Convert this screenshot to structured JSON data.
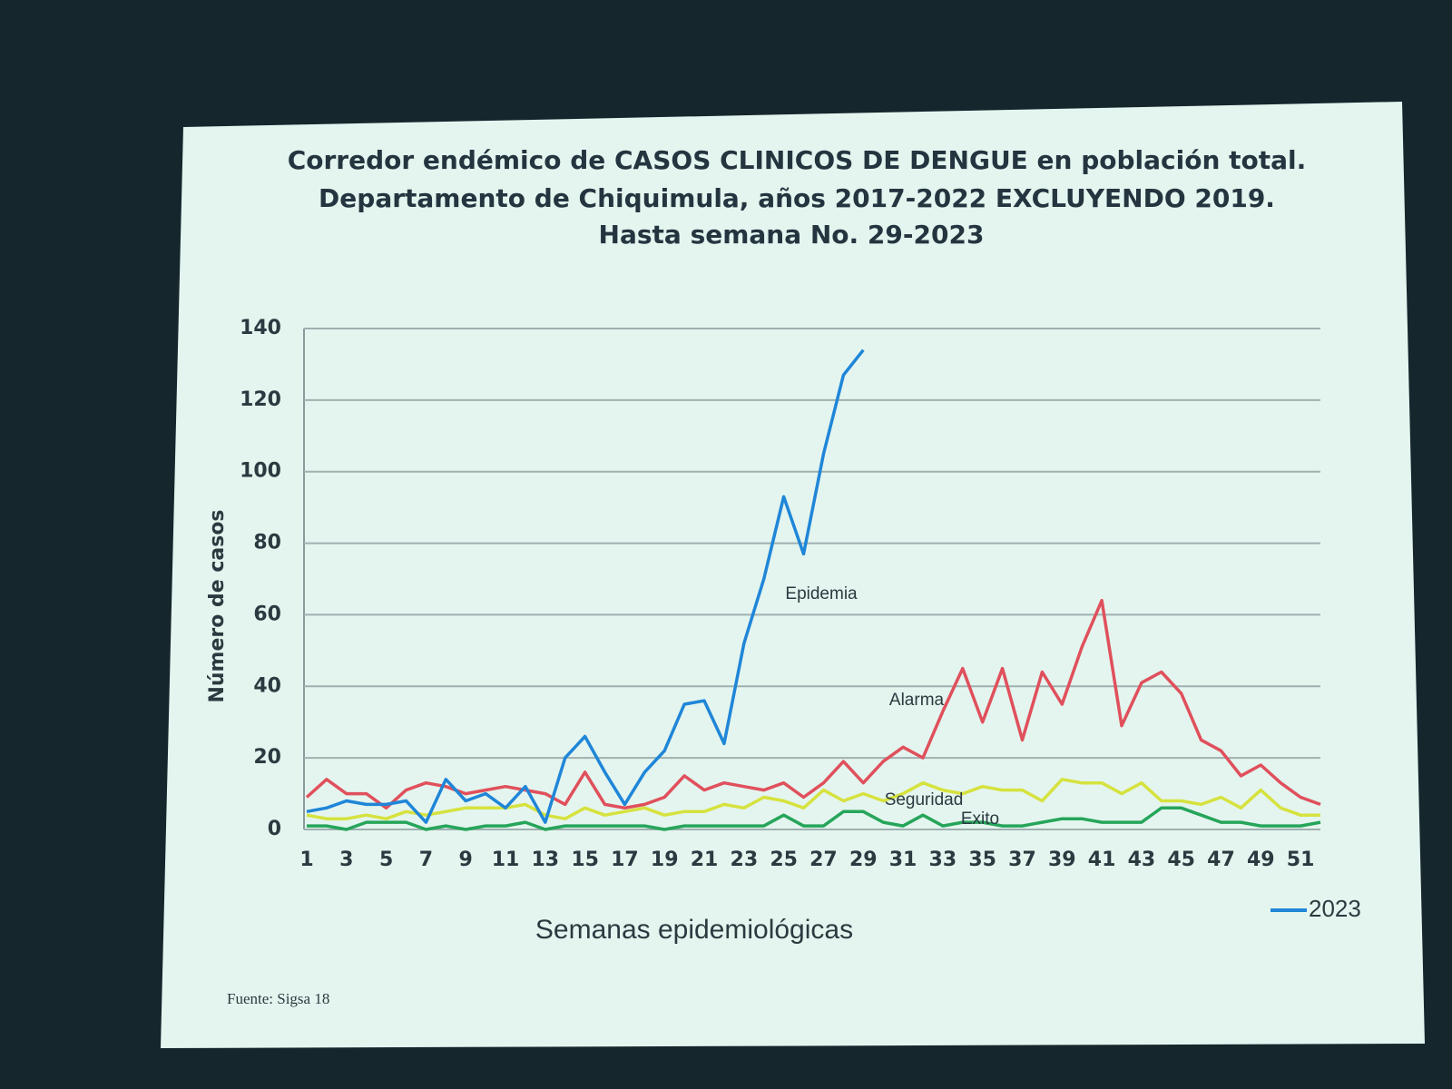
{
  "chart_data": {
    "type": "line",
    "title": [
      "Corredor endémico de CASOS CLINICOS DE DENGUE en población total.",
      "Departamento de Chiquimula, años 2017-2022 EXCLUYENDO 2019.",
      "Hasta semana No. 29-2023"
    ],
    "x_label": "Semanas epidemiológicas",
    "y_label": "Número de casos",
    "source": "Fuente: Sigsa 18",
    "categories": [
      1,
      null,
      3,
      null,
      5,
      null,
      7,
      null,
      9,
      null,
      11,
      null,
      13,
      null,
      15,
      null,
      17,
      null,
      19,
      null,
      21,
      null,
      23,
      null,
      25,
      null,
      27,
      null,
      29,
      null,
      31,
      null,
      33,
      null,
      35,
      null,
      37,
      null,
      39,
      null,
      41,
      null,
      43,
      null,
      45,
      null,
      47,
      null,
      49,
      null,
      51,
      null
    ],
    "ylim": [
      0,
      140
    ],
    "yticks": [
      0,
      20,
      40,
      60,
      80,
      100,
      120,
      140
    ],
    "grid": true,
    "legend": "bottom-right",
    "series": [
      {
        "name": "2023",
        "color": "#1f86d8",
        "values": [
          5,
          6,
          8,
          7,
          7,
          8,
          2,
          14,
          8,
          10,
          6,
          12,
          2,
          20,
          26,
          16,
          7,
          16,
          22,
          35,
          36,
          24,
          52,
          70,
          93,
          77,
          105,
          127,
          134,
          null,
          null,
          null,
          null,
          null,
          null,
          null,
          null,
          null,
          null,
          null,
          null,
          null,
          null,
          null,
          null,
          null,
          null,
          null,
          null,
          null,
          null,
          null
        ]
      },
      {
        "color": "#e0505c",
        "values": [
          9,
          14,
          10,
          10,
          6,
          11,
          13,
          12,
          10,
          11,
          12,
          11,
          10,
          7,
          16,
          7,
          6,
          7,
          9,
          15,
          11,
          13,
          12,
          11,
          13,
          9,
          13,
          19,
          13,
          19,
          23,
          20,
          33,
          45,
          30,
          45,
          25,
          44,
          35,
          51,
          64,
          29,
          41,
          44,
          38,
          25,
          22,
          15,
          18,
          13,
          9,
          7
        ]
      },
      {
        "color": "#d6e23e",
        "values": [
          4,
          3,
          3,
          4,
          3,
          5,
          4,
          5,
          6,
          6,
          6,
          7,
          4,
          3,
          6,
          4,
          5,
          6,
          4,
          5,
          5,
          7,
          6,
          9,
          8,
          6,
          11,
          8,
          10,
          8,
          10,
          13,
          11,
          10,
          12,
          11,
          11,
          8,
          14,
          13,
          13,
          10,
          13,
          8,
          8,
          7,
          9,
          6,
          11,
          6,
          4,
          4
        ]
      },
      {
        "color": "#26a55a",
        "values": [
          1,
          1,
          0,
          2,
          2,
          2,
          0,
          1,
          0,
          1,
          1,
          2,
          0,
          1,
          1,
          1,
          1,
          1,
          0,
          1,
          1,
          1,
          1,
          1,
          4,
          1,
          1,
          5,
          5,
          2,
          1,
          4,
          1,
          2,
          2,
          1,
          1,
          2,
          3,
          3,
          2,
          2,
          2,
          6,
          6,
          4,
          2,
          2,
          1,
          1,
          1,
          2
        ]
      }
    ],
    "annotations": [
      "Epidemia",
      "Alarma",
      "Seguridad",
      "Exito"
    ]
  }
}
